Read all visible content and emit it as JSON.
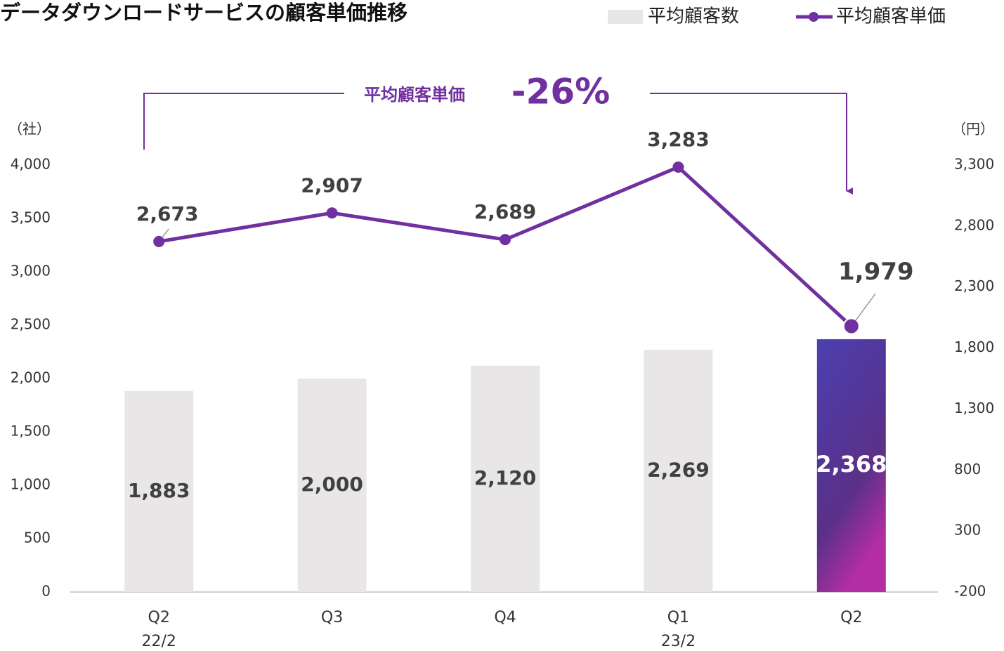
{
  "chart_data": {
    "type": "bar_line",
    "title": "データダウンロードサービスの顧客単価推移",
    "categories": [
      "Q2",
      "Q3",
      "Q4",
      "Q1",
      "Q2"
    ],
    "category_sublabels": [
      "22/2",
      null,
      null,
      "23/2",
      null
    ],
    "y_unit": "（社）",
    "y2_unit": "（円）",
    "series": [
      {
        "name": "平均顧客数",
        "type": "bar",
        "color": "#e8e6e7",
        "values": [
          1883,
          2000,
          2120,
          2269,
          2368
        ],
        "value_labels": [
          "1,883",
          "2,000",
          "2,120",
          "2,269",
          "2,368"
        ]
      },
      {
        "name": "平均顧客単価",
        "type": "line",
        "axis": "y2",
        "color": "#7030a0",
        "values": [
          2673,
          2907,
          2689,
          3283,
          1979
        ],
        "value_labels": [
          "2,673",
          "2,907",
          "2,689",
          "3,283",
          "1,979"
        ]
      }
    ],
    "highlight_index": 4,
    "highlight_colors": [
      "#4b40b0",
      "#5a3088",
      "#b22ea2"
    ],
    "ylim": [
      0,
      4000
    ],
    "yticks": [
      0,
      500,
      {
        "value": 1000,
        "label": "1,000"
      },
      {
        "value": 1500,
        "label": "1,500"
      },
      {
        "value": 2000,
        "label": "2,000"
      },
      {
        "value": 2500,
        "label": "2,500"
      },
      {
        "value": 3000,
        "label": "3,000"
      },
      {
        "value": 3500,
        "label": "3,500"
      },
      {
        "value": 4000,
        "label": "4,000"
      }
    ],
    "y2lim": [
      -200,
      3300
    ],
    "y2ticks": [
      -200,
      300,
      800,
      {
        "value": 1300,
        "label": "1,300"
      },
      {
        "value": 1800,
        "label": "1,800"
      },
      {
        "value": 2300,
        "label": "2,300"
      },
      {
        "value": 2800,
        "label": "2,800"
      },
      {
        "value": 3300,
        "label": "3,300"
      }
    ],
    "annotation": {
      "label": "平均顧客単価",
      "change": "-26%"
    }
  }
}
